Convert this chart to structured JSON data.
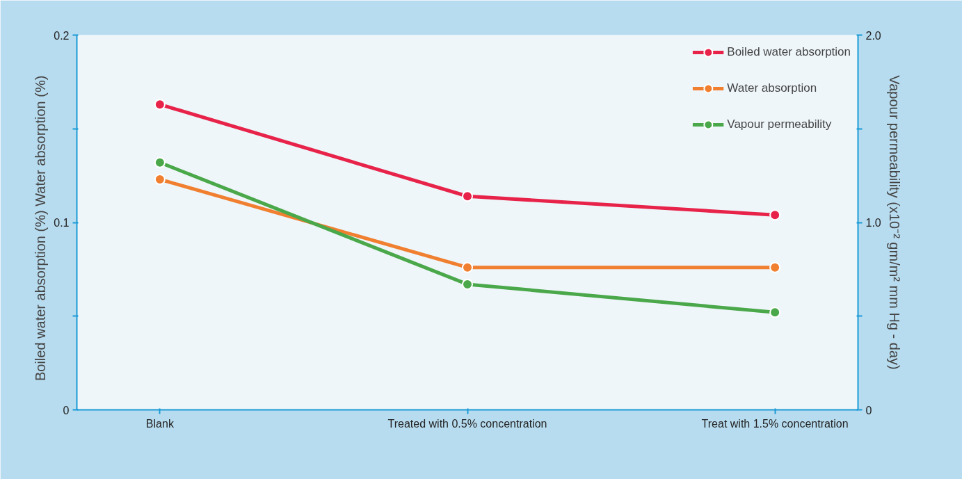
{
  "chart_data": {
    "type": "line",
    "categories": [
      "Blank",
      "Treated with 0.5% concentration",
      "Treat with 1.5% concentration"
    ],
    "ylabel": "Boiled water absorption  (%)   Water absorption (%)",
    "y2label": "Vapour permeability (x10⁻² gm/m² mm Hg - day)",
    "ylim": [
      0,
      0.2
    ],
    "yticks": [
      0,
      {
        "value": 0.05,
        "label": null
      },
      0.1,
      {
        "value": 0.15,
        "label": null
      },
      0.2
    ],
    "y2lim": [
      0,
      2.0
    ],
    "y2ticks": [
      0,
      {
        "value": 0.5,
        "label": null
      },
      {
        "value": 1.0,
        "label": "1.0"
      },
      {
        "value": 1.5,
        "label": null
      },
      {
        "value": 2.0,
        "label": "2.0"
      }
    ],
    "series": [
      {
        "name": "Boiled water absorption",
        "color": "#e8234a",
        "values": [
          0.163,
          0.114,
          0.104
        ]
      },
      {
        "name": "Water absorption",
        "color": "#f07f30",
        "values": [
          0.123,
          0.076,
          0.076
        ]
      },
      {
        "name": "Vapour permeability",
        "color": "#4aa84a",
        "axis": "y2",
        "values": [
          1.32,
          0.67,
          0.52
        ]
      }
    ],
    "marker": "circle",
    "line_style": "solid",
    "grid": false,
    "legend": "top right"
  }
}
